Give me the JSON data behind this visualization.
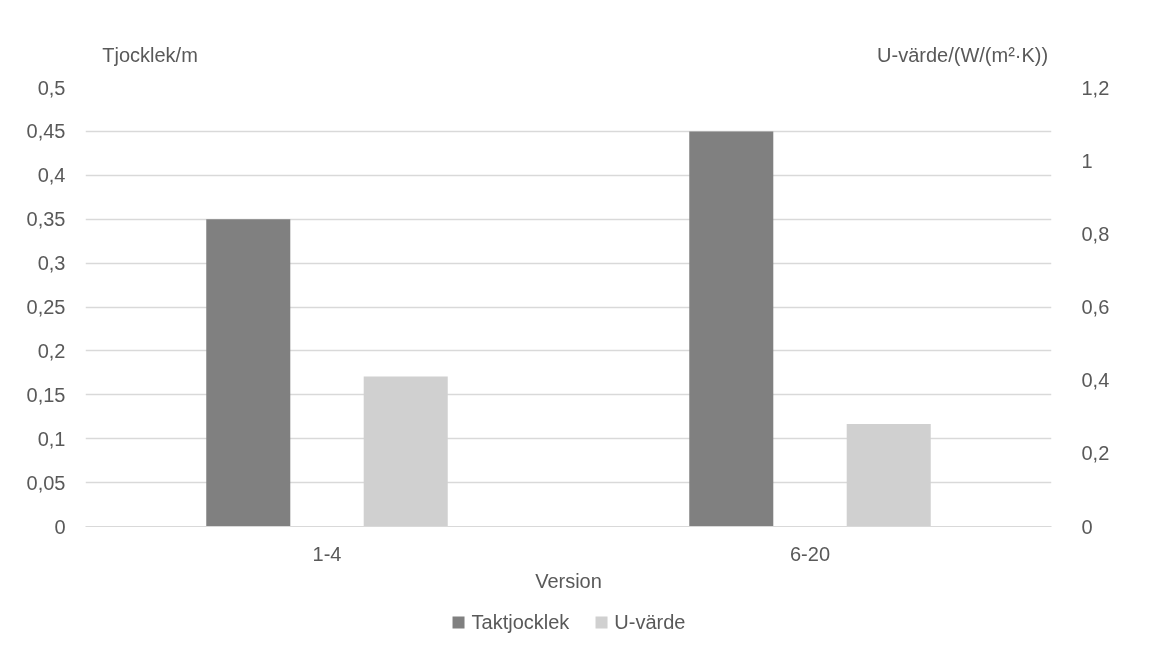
{
  "chart_data": {
    "type": "bar",
    "categories": [
      "1-4",
      "6-20"
    ],
    "xlabel": "Version",
    "ylabel": "Tjocklek/m",
    "y2label": "U-värde/(W/(m²·K))",
    "series": [
      {
        "name": "Taktjocklek",
        "color": "#808080",
        "values": [
          0.35,
          0.45
        ]
      },
      {
        "name": "U-värde",
        "color": "#d0d0d0",
        "values": [
          0.41,
          0.28
        ],
        "axis": "y2"
      }
    ],
    "ylim": [
      0,
      0.5
    ],
    "yticks": [
      0,
      {
        "value": 0.05,
        "label": "0,05"
      },
      {
        "value": 0.1,
        "label": "0,1"
      },
      {
        "value": 0.15,
        "label": "0,15"
      },
      {
        "value": 0.2,
        "label": "0,2"
      },
      {
        "value": 0.25,
        "label": "0,25"
      },
      {
        "value": 0.3,
        "label": "0,3"
      },
      {
        "value": 0.35,
        "label": "0,35"
      },
      {
        "value": 0.4,
        "label": "0,4"
      },
      {
        "value": 0.45,
        "label": "0,45"
      },
      {
        "value": 0.5,
        "label": "0,5"
      }
    ],
    "y2lim": [
      0,
      1.2
    ],
    "y2ticks": [
      0,
      {
        "value": 0.2,
        "label": "0,2"
      },
      {
        "value": 0.4,
        "label": "0,4"
      },
      {
        "value": 0.6,
        "label": "0,6"
      },
      {
        "value": 0.8,
        "label": "0,8"
      },
      1,
      {
        "value": 1.2,
        "label": "1,2"
      }
    ],
    "grid": "y",
    "legend": "bottom"
  }
}
